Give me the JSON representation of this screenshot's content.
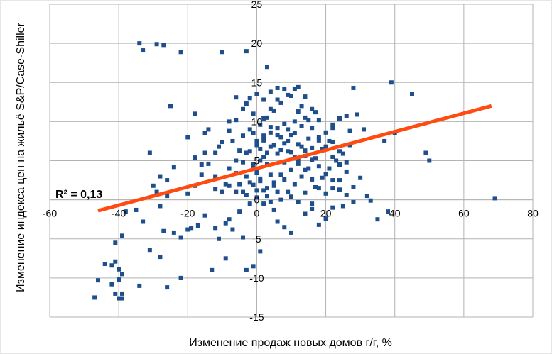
{
  "chart_data": {
    "type": "scatter",
    "title": "",
    "xlabel": "Изменение продаж новых домов г/г, %",
    "ylabel": "Изменение индекса цен на жильё S&P/Case-Shiller",
    "xlim": [
      -60,
      80
    ],
    "ylim": [
      -15,
      25
    ],
    "x_ticks": [
      -60,
      -40,
      -20,
      0,
      20,
      40,
      60,
      80
    ],
    "y_ticks": [
      -15,
      -10,
      -5,
      0,
      5,
      10,
      15,
      20,
      25
    ],
    "x_tick_labels": [
      "-60",
      "-40",
      "-20",
      "0",
      "20",
      "40",
      "60",
      "80"
    ],
    "y_tick_labels": [
      "-15",
      "-10",
      "-5",
      "0",
      "5",
      "10",
      "15",
      "20",
      "25"
    ],
    "grid": true,
    "legend": "none",
    "annotation": "R² = 0,13",
    "marker_color": "#1f4e8c",
    "trendline_color": "#ff4a10",
    "trendline": {
      "x": [
        -46,
        68
      ],
      "y": [
        -1.4,
        12.0
      ]
    },
    "series": [
      {
        "points": [
          [
            -34,
            20
          ],
          [
            -29,
            19.9
          ],
          [
            -27,
            19.8
          ],
          [
            -33,
            19.1
          ],
          [
            -22,
            18.9
          ],
          [
            -10,
            18.9
          ],
          [
            -3,
            19
          ],
          [
            3,
            17
          ],
          [
            -25,
            12
          ],
          [
            -6,
            13.1
          ],
          [
            -18,
            11
          ],
          [
            -8,
            10
          ],
          [
            -14,
            9
          ],
          [
            -15,
            8.5
          ],
          [
            -20,
            8
          ],
          [
            -31,
            6
          ],
          [
            -24,
            4.2
          ],
          [
            -28,
            3
          ],
          [
            -26,
            2.5
          ],
          [
            -30,
            1.8
          ],
          [
            -29,
            1
          ],
          [
            -26,
            0.5
          ],
          [
            -28,
            -0.8
          ],
          [
            -35,
            -1.3
          ],
          [
            -38,
            -1.5
          ],
          [
            -33,
            -2.8
          ],
          [
            -27,
            -4
          ],
          [
            -24,
            -4.2
          ],
          [
            -20,
            -3.8
          ],
          [
            -19,
            -3.6
          ],
          [
            -17,
            -3.3
          ],
          [
            -15,
            -2
          ],
          [
            -9,
            -3
          ],
          [
            -7,
            -3.8
          ],
          [
            -4,
            -4.8
          ],
          [
            -22,
            -4.8
          ],
          [
            -39,
            -4.6
          ],
          [
            -41,
            -5.5
          ],
          [
            -31,
            -6.4
          ],
          [
            -28,
            -7.3
          ],
          [
            -41,
            -7.9
          ],
          [
            -44,
            -8.2
          ],
          [
            -42,
            -8.4
          ],
          [
            -40,
            -8.9
          ],
          [
            -39,
            -9.5
          ],
          [
            -40,
            -10.2
          ],
          [
            -46,
            -10.3
          ],
          [
            -34,
            -11
          ],
          [
            -22,
            -10
          ],
          [
            -13,
            -9
          ],
          [
            -9,
            -7.5
          ],
          [
            -1,
            -8.5
          ],
          [
            1,
            -6.6
          ],
          [
            -42,
            -10.8
          ],
          [
            -26,
            -11.2
          ],
          [
            -41,
            -12
          ],
          [
            -39,
            -12
          ],
          [
            -47,
            -12.5
          ],
          [
            -40,
            -12.6
          ],
          [
            -39,
            -12.6
          ],
          [
            -3,
            -9
          ],
          [
            -11,
            -5
          ],
          [
            -12,
            -3.6
          ],
          [
            -8,
            -2.5
          ],
          [
            -5,
            -1.5
          ],
          [
            -2,
            -0.5
          ],
          [
            -6,
            1
          ],
          [
            -9,
            2
          ],
          [
            -12,
            3
          ],
          [
            -16,
            4.5
          ],
          [
            -18,
            5.4
          ],
          [
            -15,
            6
          ],
          [
            -11,
            6.8
          ],
          [
            -7,
            7.5
          ],
          [
            -4,
            8.2
          ],
          [
            -2,
            9
          ],
          [
            -1,
            11
          ],
          [
            -3,
            12.3
          ],
          [
            0,
            13.5
          ],
          [
            2,
            12.8
          ],
          [
            -10,
            1
          ],
          [
            -8,
            4
          ],
          [
            -6,
            5
          ],
          [
            -5,
            6.3
          ],
          [
            -3,
            6
          ],
          [
            -1,
            4.5
          ],
          [
            0,
            3.5
          ],
          [
            1,
            2.4
          ],
          [
            2,
            1.2
          ],
          [
            3,
            0.5
          ],
          [
            4,
            -0.3
          ],
          [
            5,
            -1.3
          ],
          [
            6,
            -2.8
          ],
          [
            8,
            -3.5
          ],
          [
            10,
            -4.2
          ],
          [
            14,
            -1.8
          ],
          [
            16,
            -0.5
          ],
          [
            18,
            -3.2
          ],
          [
            20,
            -2.4
          ],
          [
            22,
            -1
          ],
          [
            25,
            -0.8
          ],
          [
            28,
            -0.3
          ],
          [
            32,
            0.5
          ],
          [
            35,
            -2.5
          ],
          [
            38,
            -1.5
          ],
          [
            33,
            -0.1
          ],
          [
            40,
            8.5
          ],
          [
            39,
            15
          ],
          [
            45,
            13.5
          ],
          [
            49,
            6
          ],
          [
            50,
            5
          ],
          [
            69,
            0.2
          ],
          [
            37,
            7.5
          ],
          [
            31,
            9
          ],
          [
            28,
            14.3
          ],
          [
            27,
            8.8
          ],
          [
            26,
            10.7
          ],
          [
            29,
            10.9
          ],
          [
            24,
            10.4
          ],
          [
            22,
            9.2
          ],
          [
            21,
            7.5
          ],
          [
            19,
            6.5
          ],
          [
            17,
            5.3
          ],
          [
            15,
            4
          ],
          [
            13,
            3
          ],
          [
            11,
            2
          ],
          [
            9,
            1
          ],
          [
            7,
            0
          ],
          [
            5,
            1.8
          ],
          [
            4,
            3.2
          ],
          [
            3,
            4.5
          ],
          [
            2,
            5.5
          ],
          [
            1,
            6.5
          ],
          [
            0,
            7.5
          ],
          [
            -1,
            8.5
          ],
          [
            1,
            9.6
          ],
          [
            3,
            10.5
          ],
          [
            5,
            11.4
          ],
          [
            7,
            12.4
          ],
          [
            9,
            13.4
          ],
          [
            11,
            14.2
          ],
          [
            13,
            12
          ],
          [
            14,
            10.5
          ],
          [
            16,
            9.2
          ],
          [
            18,
            8
          ],
          [
            20,
            6.8
          ],
          [
            22,
            5.5
          ],
          [
            24,
            4.5
          ],
          [
            26,
            3.6
          ],
          [
            24,
            2.5
          ],
          [
            22,
            1.5
          ],
          [
            20,
            0.8
          ],
          [
            18,
            1.5
          ],
          [
            16,
            2.6
          ],
          [
            14,
            3.8
          ],
          [
            12,
            5
          ],
          [
            10,
            6.1
          ],
          [
            8,
            7.2
          ],
          [
            6,
            8.3
          ],
          [
            4,
            9.3
          ],
          [
            2,
            10.4
          ],
          [
            4,
            11.6
          ],
          [
            6,
            12.8
          ],
          [
            8,
            14.2
          ],
          [
            10,
            13.3
          ],
          [
            12,
            11.3
          ],
          [
            11,
            10
          ],
          [
            9,
            9
          ],
          [
            7,
            8
          ],
          [
            5,
            7
          ],
          [
            3,
            6
          ],
          [
            1,
            5
          ],
          [
            -1,
            4
          ],
          [
            -3,
            3
          ],
          [
            -5,
            2
          ],
          [
            -4,
            1
          ],
          [
            0,
            0.3
          ],
          [
            2,
            -0.5
          ],
          [
            6,
            1
          ],
          [
            8,
            2.6
          ],
          [
            10,
            3.8
          ],
          [
            12,
            4.6
          ],
          [
            14,
            5.6
          ],
          [
            16,
            6.6
          ],
          [
            18,
            7.6
          ],
          [
            20,
            8.6
          ],
          [
            22,
            9.6
          ],
          [
            18,
            10.2
          ],
          [
            16,
            11.6
          ],
          [
            14,
            13.2
          ],
          [
            12,
            14.4
          ],
          [
            6,
            14.3
          ],
          [
            4,
            13.8
          ],
          [
            -2,
            13
          ],
          [
            -4,
            11.6
          ],
          [
            -6,
            10.2
          ],
          [
            -8,
            8.8
          ],
          [
            -10,
            7.4
          ],
          [
            -12,
            6
          ],
          [
            -14,
            4.6
          ],
          [
            -16,
            3.2
          ],
          [
            -18,
            1.8
          ],
          [
            -20,
            0.8
          ],
          [
            -12,
            1.4
          ],
          [
            -8,
            1.8
          ],
          [
            -6,
            3.4
          ],
          [
            -4,
            4.8
          ],
          [
            -2,
            6.2
          ],
          [
            0,
            7
          ],
          [
            2,
            8.2
          ],
          [
            4,
            8.6
          ],
          [
            6,
            9.2
          ],
          [
            8,
            9.7
          ],
          [
            10,
            8.3
          ],
          [
            12,
            7.1
          ],
          [
            14,
            6.3
          ],
          [
            16,
            5.1
          ],
          [
            18,
            4.3
          ],
          [
            20,
            3.3
          ],
          [
            22,
            2.5
          ],
          [
            24,
            1.3
          ],
          [
            26,
            0.6
          ],
          [
            28,
            1.6
          ],
          [
            30,
            2.8
          ],
          [
            26,
            4.8
          ],
          [
            24,
            6.2
          ],
          [
            22,
            7.4
          ],
          [
            8,
            4.8
          ],
          [
            6,
            5.9
          ],
          [
            4,
            6.8
          ],
          [
            2,
            7.6
          ],
          [
            9,
            6.2
          ],
          [
            11,
            5.4
          ],
          [
            13,
            6.8
          ],
          [
            15,
            7.8
          ],
          [
            7,
            3.2
          ],
          [
            5,
            2.2
          ],
          [
            3,
            1.5
          ],
          [
            1,
            2.7
          ],
          [
            -1,
            1.9
          ],
          [
            -3,
            0.6
          ],
          [
            17,
            1.6
          ],
          [
            19,
            2.8
          ],
          [
            21,
            4
          ],
          [
            23,
            5
          ],
          [
            25,
            5.9
          ],
          [
            27,
            7
          ],
          [
            7,
            6.4
          ],
          [
            9,
            7.5
          ],
          [
            11,
            8.5
          ],
          [
            13,
            9.4
          ],
          [
            15,
            10.2
          ],
          [
            17,
            11.2
          ],
          [
            -2,
            2.2
          ],
          [
            0,
            1.2
          ],
          [
            10,
            0.4
          ],
          [
            12,
            -0.3
          ],
          [
            14,
            0.9
          ],
          [
            16,
            -1.2
          ]
        ]
      }
    ]
  }
}
